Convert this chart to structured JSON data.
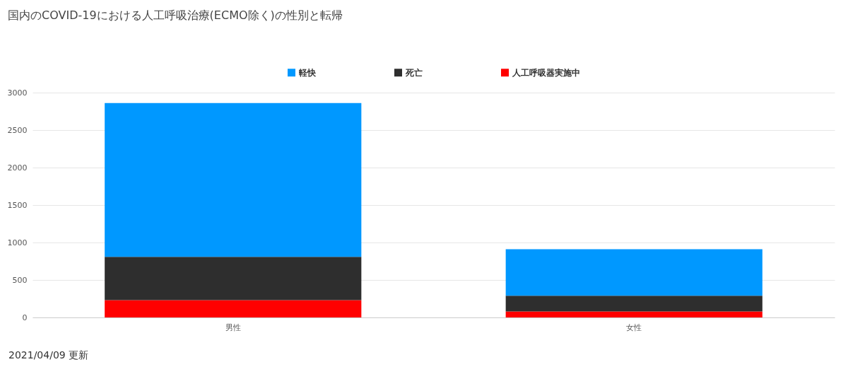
{
  "chart_data": {
    "type": "bar",
    "title": "国内のCOVID-19における人工呼吸治療(ECMO除く)の性別と転帰",
    "categories": [
      "男性",
      "女性"
    ],
    "stacked": true,
    "series": [
      {
        "name": "人工呼吸器実施中",
        "color": "#ff0000",
        "values": [
          230,
          80
        ]
      },
      {
        "name": "死亡",
        "color": "#2e2e2e",
        "values": [
          580,
          210
        ]
      },
      {
        "name": "軽快",
        "color": "#0098ff",
        "values": [
          2050,
          620
        ]
      }
    ],
    "ylim": [
      0,
      3000
    ],
    "yticks": [
      0,
      500,
      1000,
      1500,
      2000,
      2500,
      3000
    ],
    "grid": "y",
    "legend": "top",
    "annotations": [
      "2021/04/09 更新"
    ]
  }
}
